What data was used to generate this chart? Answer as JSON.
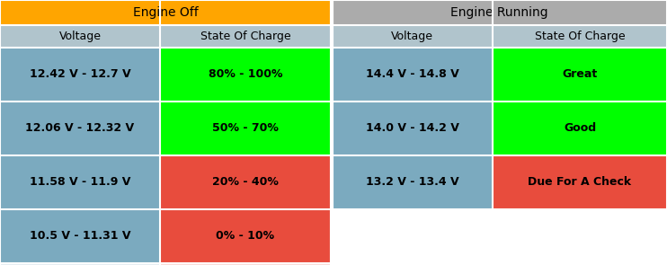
{
  "title_left": "Engine Off",
  "title_right": "Engine Running",
  "title_left_color": "#FFA500",
  "title_right_color": "#ABABAB",
  "header_bg_color": "#B0C4CC",
  "col_headers": [
    "Voltage",
    "State Of Charge",
    "Voltage",
    "State Of Charge"
  ],
  "rows": [
    {
      "voltage_left": "12.42 V - 12.7 V",
      "charge_left": "80% - 100%",
      "voltage_right": "14.4 V - 14.8 V",
      "charge_right": "Great",
      "charge_left_color": "#00FF00",
      "charge_right_color": "#00FF00",
      "voltage_left_color": "#7BAABF",
      "voltage_right_color": "#7BAABF"
    },
    {
      "voltage_left": "12.06 V - 12.32 V",
      "charge_left": "50% - 70%",
      "voltage_right": "14.0 V - 14.2 V",
      "charge_right": "Good",
      "charge_left_color": "#00FF00",
      "charge_right_color": "#00FF00",
      "voltage_left_color": "#7BAABF",
      "voltage_right_color": "#7BAABF"
    },
    {
      "voltage_left": "11.58 V - 11.9 V",
      "charge_left": "20% - 40%",
      "voltage_right": "13.2 V - 13.4 V",
      "charge_right": "Due For A Check",
      "charge_left_color": "#E84C3D",
      "charge_right_color": "#E84C3D",
      "voltage_left_color": "#7BAABF",
      "voltage_right_color": "#7BAABF"
    },
    {
      "voltage_left": "10.5 V - 11.31 V",
      "charge_left": "0% - 10%",
      "voltage_right": "",
      "charge_right": "",
      "charge_left_color": "#E84C3D",
      "charge_right_color": "#FFFFFF",
      "voltage_left_color": "#7BAABF",
      "voltage_right_color": "#FFFFFF"
    }
  ],
  "font_size_title": 10,
  "font_size_header": 9,
  "font_size_data": 9
}
